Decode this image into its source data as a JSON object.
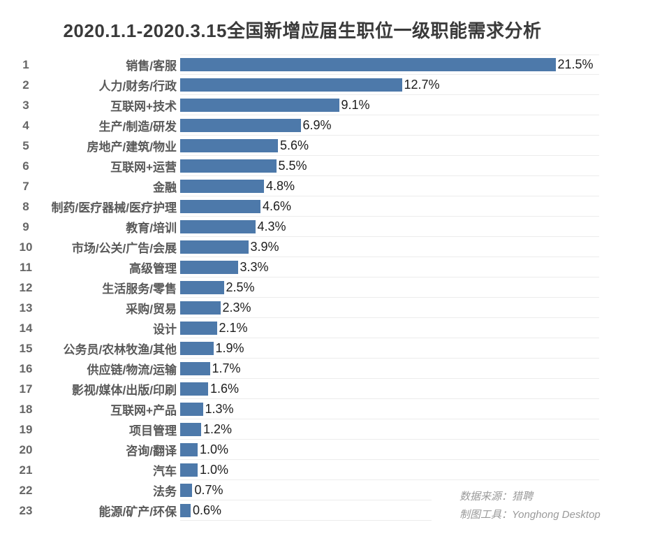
{
  "title": "2020.1.1-2020.3.15全国新增应届生职位一级职能需求分析",
  "footer": {
    "source_label": "数据来源：猎聘",
    "tool_label": "制图工具：Yonghong Desktop"
  },
  "colors": {
    "bar": "#4d79aa",
    "gridline": "#ececec",
    "title_text": "#3a3a3a",
    "rank_text": "#666666",
    "category_text": "#595959",
    "value_text": "#1d1d1d",
    "footer_text": "#9a9a9a",
    "background": "#ffffff"
  },
  "chart_data": {
    "type": "bar",
    "orientation": "horizontal",
    "title": "2020.1.1-2020.3.15全国新增应届生职位一级职能需求分析",
    "xlabel": "",
    "ylabel": "",
    "xlim": [
      0,
      24
    ],
    "grid": "row-separator-lines",
    "legend_position": "none",
    "ranks": [
      1,
      2,
      3,
      4,
      5,
      6,
      7,
      8,
      9,
      10,
      11,
      12,
      13,
      14,
      15,
      16,
      17,
      18,
      19,
      20,
      21,
      22,
      23
    ],
    "categories": [
      "销售/客服",
      "人力/财务/行政",
      "互联网+技术",
      "生产/制造/研发",
      "房地产/建筑/物业",
      "互联网+运营",
      "金融",
      "制药/医疗器械/医疗护理",
      "教育/培训",
      "市场/公关/广告/会展",
      "高级管理",
      "生活服务/零售",
      "采购/贸易",
      "设计",
      "公务员/农林牧渔/其他",
      "供应链/物流/运输",
      "影视/媒体/出版/印刷",
      "互联网+产品",
      "项目管理",
      "咨询/翻译",
      "汽车",
      "法务",
      "能源/矿产/环保"
    ],
    "values": [
      21.5,
      12.7,
      9.1,
      6.9,
      5.6,
      5.5,
      4.8,
      4.6,
      4.3,
      3.9,
      3.3,
      2.5,
      2.3,
      2.1,
      1.9,
      1.7,
      1.6,
      1.3,
      1.2,
      1.0,
      1.0,
      0.7,
      0.6
    ],
    "value_labels": [
      "21.5%",
      "12.7%",
      "9.1%",
      "6.9%",
      "5.6%",
      "5.5%",
      "4.8%",
      "4.6%",
      "4.3%",
      "3.9%",
      "3.3%",
      "2.5%",
      "2.3%",
      "2.1%",
      "1.9%",
      "1.7%",
      "1.6%",
      "1.3%",
      "1.2%",
      "1.0%",
      "1.0%",
      "0.7%",
      "0.6%"
    ]
  }
}
